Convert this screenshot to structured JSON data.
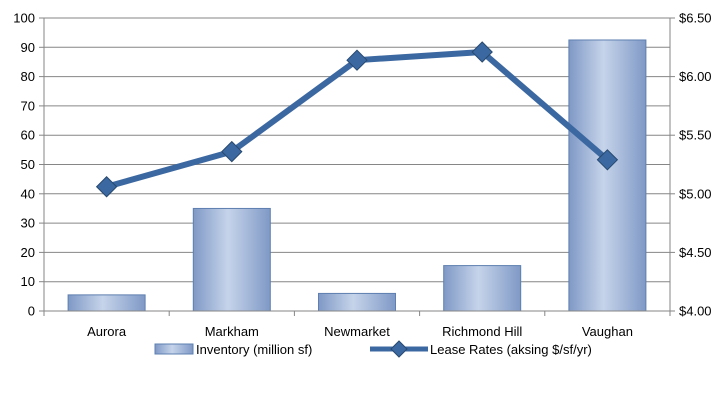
{
  "chart_data": {
    "type": "bar",
    "categories": [
      "Aurora",
      "Markham",
      "Newmarket",
      "Richmond Hill",
      "Vaughan"
    ],
    "series": [
      {
        "name": "Inventory (million sf)",
        "type": "bar",
        "axis": "left",
        "values": [
          5.5,
          35,
          6,
          15.5,
          92.5
        ]
      },
      {
        "name": "Lease Rates (aksing $/sf/yr)",
        "type": "line",
        "axis": "right",
        "marker": "diamond",
        "values": [
          5.06,
          5.36,
          6.14,
          6.21,
          5.29
        ]
      }
    ],
    "y_left": {
      "min": 0,
      "max": 100,
      "step": 10,
      "ticks": [
        "0",
        "10",
        "20",
        "30",
        "40",
        "50",
        "60",
        "70",
        "80",
        "90",
        "100"
      ]
    },
    "y_right": {
      "min": 4.0,
      "max": 6.5,
      "step": 0.5,
      "ticks": [
        "$4.00",
        "$4.50",
        "$5.00",
        "$5.50",
        "$6.00",
        "$6.50"
      ]
    },
    "grid": true,
    "legend": "bottom",
    "colors": {
      "bar_fill_top": "#c6d4ea",
      "bar_fill_bottom": "#7f99c6",
      "line": "#3c68a1",
      "axis": "#868686"
    }
  }
}
